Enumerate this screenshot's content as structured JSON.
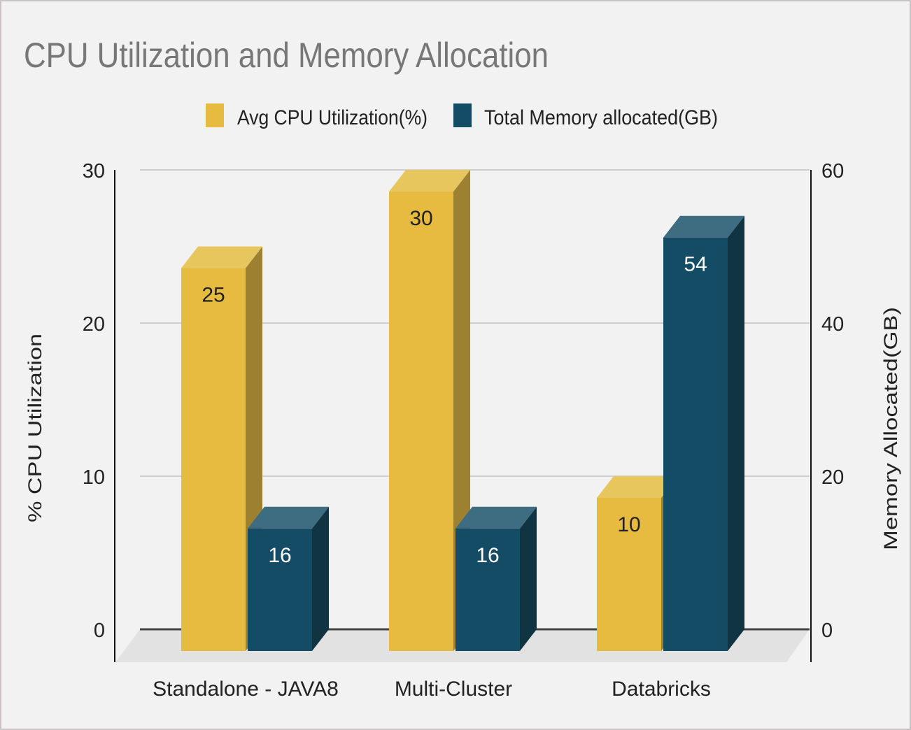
{
  "chart_data": {
    "type": "bar",
    "title": "CPU Utilization and Memory Allocation",
    "categories": [
      "Standalone - JAVA8",
      "Multi-Cluster",
      "Databricks"
    ],
    "series": [
      {
        "name": "Avg CPU Utilization(%)",
        "axis": "left",
        "color": "#e6bb3f",
        "values": [
          25,
          30,
          10
        ]
      },
      {
        "name": "Total Memory allocated(GB)",
        "axis": "right",
        "color": "#154c65",
        "values": [
          16,
          16,
          54
        ]
      }
    ],
    "ylabel": "% CPU Utilization",
    "y2label": "Memory Allocated(GB)",
    "ylim": [
      0,
      30
    ],
    "y2lim": [
      0,
      60
    ],
    "yticks": [
      "0",
      "10",
      "20",
      "30"
    ],
    "y2ticks": [
      "0",
      "20",
      "40",
      "60"
    ],
    "grid": true,
    "legend": "top",
    "style": "3d"
  }
}
